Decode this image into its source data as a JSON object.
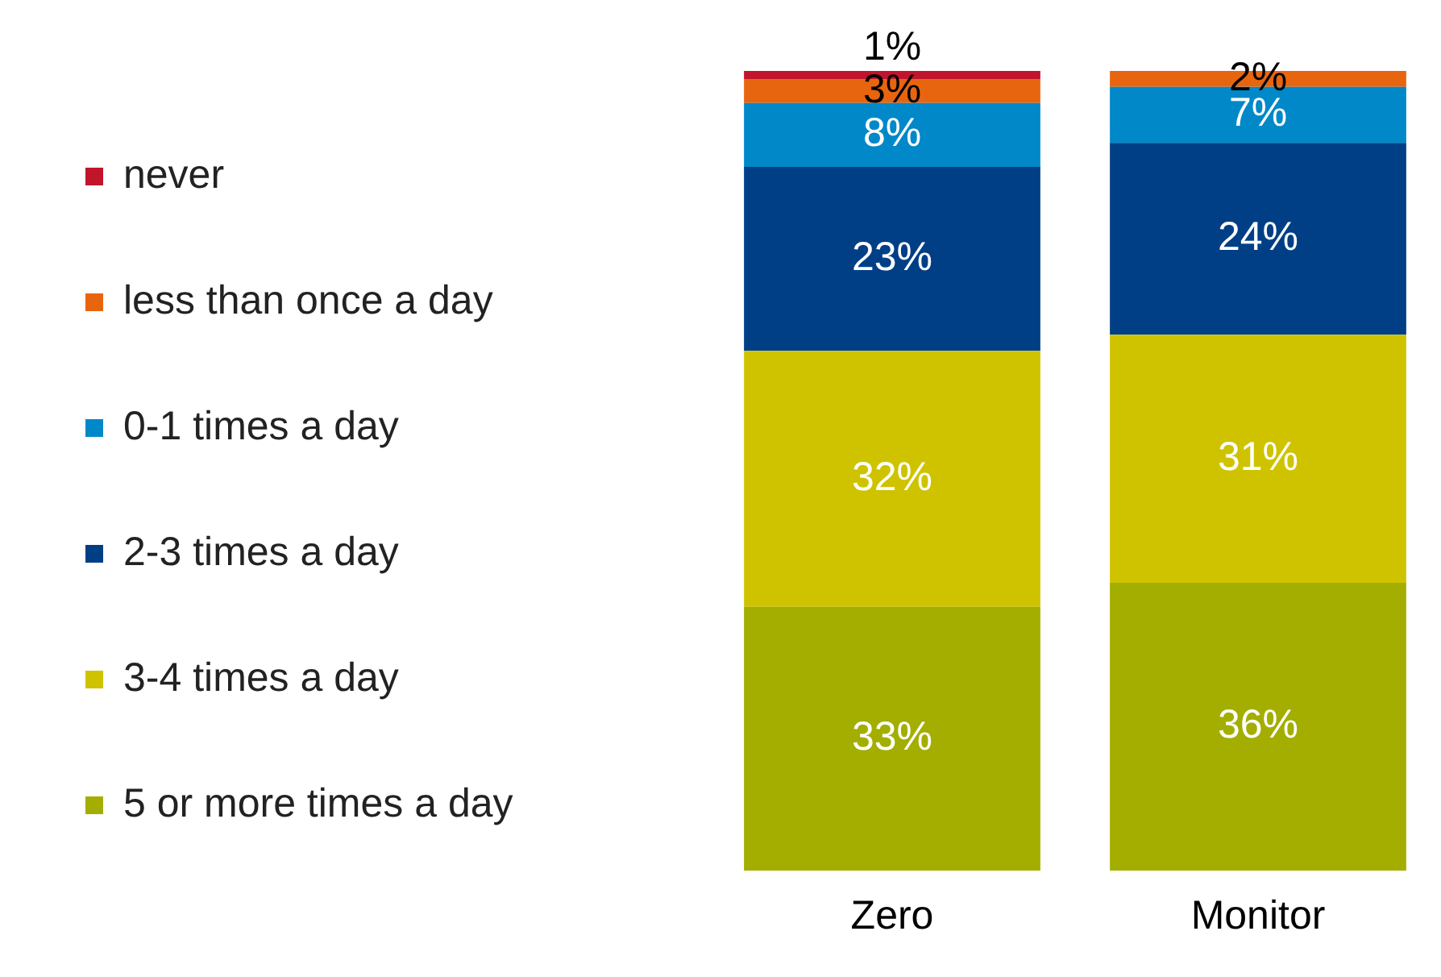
{
  "chart_data": {
    "type": "bar",
    "stacked": true,
    "categories": [
      "Zero",
      "Monitor"
    ],
    "ylim": [
      0,
      100
    ],
    "tick_labels": "x",
    "grid": false,
    "legend": "left",
    "series": [
      {
        "name": "5 or more times a day",
        "color": "#a3ae00",
        "values": [
          33,
          36
        ],
        "value_labels": [
          "33%",
          "36%"
        ]
      },
      {
        "name": "3-4 times a day",
        "color": "#cfc300",
        "values": [
          32,
          31
        ],
        "value_labels": [
          "32%",
          "31%"
        ]
      },
      {
        "name": "2-3 times a day",
        "color": "#003f85",
        "values": [
          23,
          24
        ],
        "value_labels": [
          "23%",
          "24%"
        ]
      },
      {
        "name": "0-1 times a day",
        "color": "#0088c8",
        "values": [
          8,
          7
        ],
        "value_labels": [
          "8%",
          "7%"
        ]
      },
      {
        "name": "less than once a day",
        "color": "#e8650f",
        "values": [
          3,
          2
        ],
        "value_labels": [
          "3%",
          "2%"
        ]
      },
      {
        "name": "never",
        "color": "#c0152b",
        "values": [
          1,
          0
        ],
        "value_labels": [
          "1%",
          null
        ]
      }
    ]
  }
}
